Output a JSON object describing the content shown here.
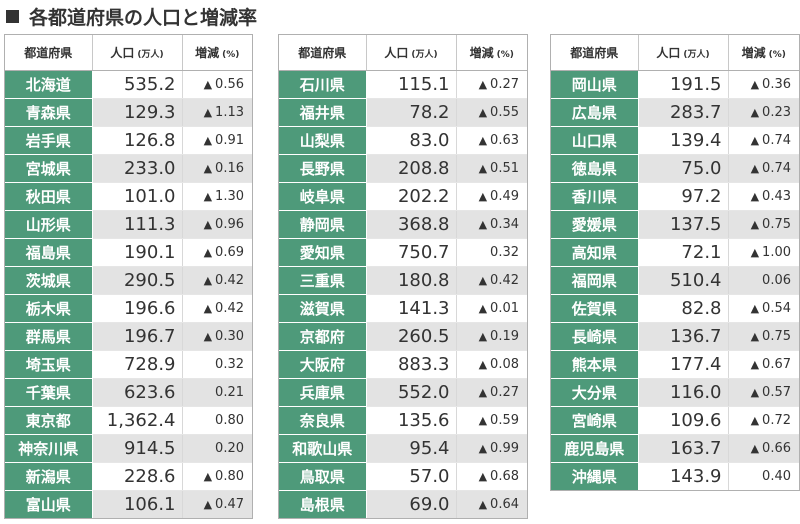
{
  "title": "各都道府県の人口と増減率",
  "headers": {
    "pref": "都道府県",
    "pop": "人口",
    "pop_unit": "(万人)",
    "chg": "増減",
    "chg_unit": "(%)"
  },
  "decrease_marker": "▲",
  "colors": {
    "pref_bg": "#4e9a7a",
    "stripe": "#e3e3e3"
  },
  "tables": [
    [
      {
        "pref": "北海道",
        "pop": "535.2",
        "decrease": true,
        "chg": "0.56"
      },
      {
        "pref": "青森県",
        "pop": "129.3",
        "decrease": true,
        "chg": "1.13"
      },
      {
        "pref": "岩手県",
        "pop": "126.8",
        "decrease": true,
        "chg": "0.91"
      },
      {
        "pref": "宮城県",
        "pop": "233.0",
        "decrease": true,
        "chg": "0.16"
      },
      {
        "pref": "秋田県",
        "pop": "101.0",
        "decrease": true,
        "chg": "1.30"
      },
      {
        "pref": "山形県",
        "pop": "111.3",
        "decrease": true,
        "chg": "0.96"
      },
      {
        "pref": "福島県",
        "pop": "190.1",
        "decrease": true,
        "chg": "0.69"
      },
      {
        "pref": "茨城県",
        "pop": "290.5",
        "decrease": true,
        "chg": "0.42"
      },
      {
        "pref": "栃木県",
        "pop": "196.6",
        "decrease": true,
        "chg": "0.42"
      },
      {
        "pref": "群馬県",
        "pop": "196.7",
        "decrease": true,
        "chg": "0.30"
      },
      {
        "pref": "埼玉県",
        "pop": "728.9",
        "decrease": false,
        "chg": "0.32"
      },
      {
        "pref": "千葉県",
        "pop": "623.6",
        "decrease": false,
        "chg": "0.21"
      },
      {
        "pref": "東京都",
        "pop": "1,362.4",
        "decrease": false,
        "chg": "0.80"
      },
      {
        "pref": "神奈川県",
        "pop": "914.5",
        "decrease": false,
        "chg": "0.20"
      },
      {
        "pref": "新潟県",
        "pop": "228.6",
        "decrease": true,
        "chg": "0.80"
      },
      {
        "pref": "富山県",
        "pop": "106.1",
        "decrease": true,
        "chg": "0.47"
      }
    ],
    [
      {
        "pref": "石川県",
        "pop": "115.1",
        "decrease": true,
        "chg": "0.27"
      },
      {
        "pref": "福井県",
        "pop": "78.2",
        "decrease": true,
        "chg": "0.55"
      },
      {
        "pref": "山梨県",
        "pop": "83.0",
        "decrease": true,
        "chg": "0.63"
      },
      {
        "pref": "長野県",
        "pop": "208.8",
        "decrease": true,
        "chg": "0.51"
      },
      {
        "pref": "岐阜県",
        "pop": "202.2",
        "decrease": true,
        "chg": "0.49"
      },
      {
        "pref": "静岡県",
        "pop": "368.8",
        "decrease": true,
        "chg": "0.34"
      },
      {
        "pref": "愛知県",
        "pop": "750.7",
        "decrease": false,
        "chg": "0.32"
      },
      {
        "pref": "三重県",
        "pop": "180.8",
        "decrease": true,
        "chg": "0.42"
      },
      {
        "pref": "滋賀県",
        "pop": "141.3",
        "decrease": true,
        "chg": "0.01"
      },
      {
        "pref": "京都府",
        "pop": "260.5",
        "decrease": true,
        "chg": "0.19"
      },
      {
        "pref": "大阪府",
        "pop": "883.3",
        "decrease": true,
        "chg": "0.08"
      },
      {
        "pref": "兵庫県",
        "pop": "552.0",
        "decrease": true,
        "chg": "0.27"
      },
      {
        "pref": "奈良県",
        "pop": "135.6",
        "decrease": true,
        "chg": "0.59"
      },
      {
        "pref": "和歌山県",
        "pop": "95.4",
        "decrease": true,
        "chg": "0.99"
      },
      {
        "pref": "鳥取県",
        "pop": "57.0",
        "decrease": true,
        "chg": "0.68"
      },
      {
        "pref": "島根県",
        "pop": "69.0",
        "decrease": true,
        "chg": "0.64"
      }
    ],
    [
      {
        "pref": "岡山県",
        "pop": "191.5",
        "decrease": true,
        "chg": "0.36"
      },
      {
        "pref": "広島県",
        "pop": "283.7",
        "decrease": true,
        "chg": "0.23"
      },
      {
        "pref": "山口県",
        "pop": "139.4",
        "decrease": true,
        "chg": "0.74"
      },
      {
        "pref": "徳島県",
        "pop": "75.0",
        "decrease": true,
        "chg": "0.74"
      },
      {
        "pref": "香川県",
        "pop": "97.2",
        "decrease": true,
        "chg": "0.43"
      },
      {
        "pref": "愛媛県",
        "pop": "137.5",
        "decrease": true,
        "chg": "0.75"
      },
      {
        "pref": "高知県",
        "pop": "72.1",
        "decrease": true,
        "chg": "1.00"
      },
      {
        "pref": "福岡県",
        "pop": "510.4",
        "decrease": false,
        "chg": "0.06"
      },
      {
        "pref": "佐賀県",
        "pop": "82.8",
        "decrease": true,
        "chg": "0.54"
      },
      {
        "pref": "長崎県",
        "pop": "136.7",
        "decrease": true,
        "chg": "0.75"
      },
      {
        "pref": "熊本県",
        "pop": "177.4",
        "decrease": true,
        "chg": "0.67"
      },
      {
        "pref": "大分県",
        "pop": "116.0",
        "decrease": true,
        "chg": "0.57"
      },
      {
        "pref": "宮崎県",
        "pop": "109.6",
        "decrease": true,
        "chg": "0.72"
      },
      {
        "pref": "鹿児島県",
        "pop": "163.7",
        "decrease": true,
        "chg": "0.66"
      },
      {
        "pref": "沖縄県",
        "pop": "143.9",
        "decrease": false,
        "chg": "0.40"
      }
    ]
  ]
}
